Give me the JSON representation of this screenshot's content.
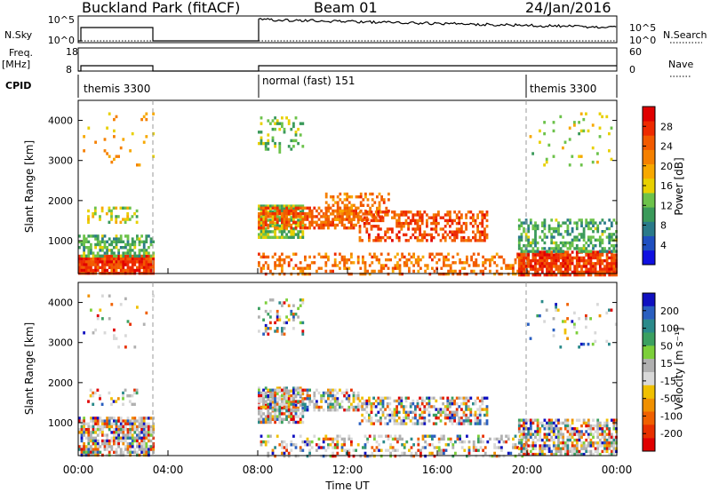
{
  "header": {
    "site": "Buckland Park (fitACF)",
    "beam": "Beam 01",
    "date": "24/Jan/2016"
  },
  "summary": {
    "nsky_label": "N.Sky",
    "nsky_ticks": [
      "10^5",
      "10^0"
    ],
    "nsearch_label": "N.Search",
    "nsearch_ticks": [
      "10^5",
      "10^0"
    ],
    "freq_label": "Freq.",
    "freq_unit": "[MHz]",
    "freq_ticks": [
      "18",
      "8"
    ],
    "nave_label": "Nave",
    "nave_ticks": [
      "60",
      "0"
    ],
    "cpid_label": "CPID",
    "cpid_segments": [
      {
        "label": "themis 3300",
        "start": 0,
        "end": 3.3
      },
      {
        "label": "normal (fast) 151",
        "start": 8.0,
        "end": 19.6
      },
      {
        "label": "themis 3300",
        "start": 19.6,
        "end": 24
      }
    ]
  },
  "axes": {
    "xlabel": "Time UT",
    "xticks": [
      "00:00",
      "04:00",
      "08:00",
      "12:00",
      "16:00",
      "20:00",
      "00:00"
    ],
    "ylabel": "Slant Range [km]",
    "yticks": [
      "1000",
      "2000",
      "3000",
      "4000"
    ]
  },
  "colorbars": {
    "power": {
      "label": "Power [dB]",
      "ticks": [
        "4",
        "8",
        "12",
        "16",
        "20",
        "24",
        "28"
      ],
      "colors": [
        "#1010e0",
        "#1f4fc0",
        "#2a7a8a",
        "#3a9a5a",
        "#6cc24a",
        "#e8d000",
        "#f7a800",
        "#f58000",
        "#f25a00",
        "#ee2a00",
        "#e00000"
      ]
    },
    "velocity": {
      "label": "Velocity [m s⁻¹]",
      "ticks": [
        "200",
        "100",
        "50",
        "15",
        "-15",
        "-50",
        "-100",
        "-200"
      ],
      "colors": [
        "#1010c0",
        "#2a5fc0",
        "#2a8a8a",
        "#3ba060",
        "#7ccf3a",
        "#b0b0b0",
        "#d8d8d8",
        "#f0c000",
        "#f09000",
        "#f06000",
        "#e83000",
        "#e00000"
      ]
    }
  },
  "chart_data": [
    {
      "type": "heatmap",
      "title": "",
      "quantity": "Power [dB]",
      "xlabel": "Time UT",
      "ylabel": "Slant Range [km]",
      "xlim_hours": [
        0,
        24
      ],
      "ylim_km": [
        180,
        4500
      ],
      "clim": [
        0,
        30
      ],
      "regions": [
        {
          "t": [
            0,
            3.3
          ],
          "r": [
            180,
            650
          ],
          "value": 26,
          "density": 0.9
        },
        {
          "t": [
            0,
            3.3
          ],
          "r": [
            650,
            1150
          ],
          "value": 10,
          "density": 0.55
        },
        {
          "t": [
            0.4,
            2.6
          ],
          "r": [
            1450,
            1850
          ],
          "value": 14,
          "density": 0.35
        },
        {
          "t": [
            0,
            3.3
          ],
          "r": [
            2900,
            4200
          ],
          "value": 18,
          "density": 0.05
        },
        {
          "t": [
            8.0,
            10.0
          ],
          "r": [
            1100,
            1900
          ],
          "value": 12,
          "density": 0.8
        },
        {
          "t": [
            8.0,
            12.5
          ],
          "r": [
            1350,
            1850
          ],
          "value": 24,
          "density": 0.6
        },
        {
          "t": [
            11.0,
            13.8
          ],
          "r": [
            1500,
            2200
          ],
          "value": 22,
          "density": 0.45
        },
        {
          "t": [
            12.5,
            18.2
          ],
          "r": [
            1000,
            1750
          ],
          "value": 25,
          "density": 0.5
        },
        {
          "t": [
            8.0,
            20.0
          ],
          "r": [
            180,
            700
          ],
          "value": 22,
          "density": 0.35
        },
        {
          "t": [
            8.0,
            10.0
          ],
          "r": [
            3200,
            4100
          ],
          "value": 12,
          "density": 0.25
        },
        {
          "t": [
            19.6,
            24
          ],
          "r": [
            180,
            750
          ],
          "value": 26,
          "density": 0.85
        },
        {
          "t": [
            19.6,
            24
          ],
          "r": [
            750,
            1550
          ],
          "value": 10,
          "density": 0.5
        },
        {
          "t": [
            20.0,
            24
          ],
          "r": [
            2900,
            4200
          ],
          "value": 14,
          "density": 0.06
        }
      ]
    },
    {
      "type": "heatmap",
      "title": "",
      "quantity": "Velocity [m s-1]",
      "xlabel": "Time UT",
      "ylabel": "Slant Range [km]",
      "xlim_hours": [
        0,
        24
      ],
      "ylim_km": [
        180,
        4500
      ],
      "clim": [
        -250,
        250
      ],
      "regions": [
        {
          "t": [
            0,
            3.3
          ],
          "r": [
            180,
            1150
          ],
          "value": 0,
          "density": 0.75,
          "mixed": true
        },
        {
          "t": [
            0.4,
            2.6
          ],
          "r": [
            1450,
            1850
          ],
          "value": 0,
          "density": 0.3,
          "mixed": true
        },
        {
          "t": [
            0,
            3.3
          ],
          "r": [
            2900,
            4200
          ],
          "value": 0,
          "density": 0.05,
          "mixed": true
        },
        {
          "t": [
            8.0,
            10.0
          ],
          "r": [
            1000,
            1900
          ],
          "value": 0,
          "density": 0.75,
          "mixed": true
        },
        {
          "t": [
            8.0,
            12.5
          ],
          "r": [
            1350,
            1850
          ],
          "value": -20,
          "density": 0.55,
          "mixed": true
        },
        {
          "t": [
            12.5,
            18.2
          ],
          "r": [
            1000,
            1650
          ],
          "value": 30,
          "density": 0.55,
          "mixed": true
        },
        {
          "t": [
            8.0,
            20.0
          ],
          "r": [
            180,
            700
          ],
          "value": 0,
          "density": 0.35,
          "mixed": true
        },
        {
          "t": [
            8.0,
            10.0
          ],
          "r": [
            3200,
            4100
          ],
          "value": 0,
          "density": 0.25,
          "mixed": true
        },
        {
          "t": [
            19.6,
            24
          ],
          "r": [
            180,
            1100
          ],
          "value": 0,
          "density": 0.7,
          "mixed": true
        },
        {
          "t": [
            20.0,
            24
          ],
          "r": [
            2900,
            4200
          ],
          "value": 0,
          "density": 0.06,
          "mixed": true
        }
      ]
    }
  ]
}
